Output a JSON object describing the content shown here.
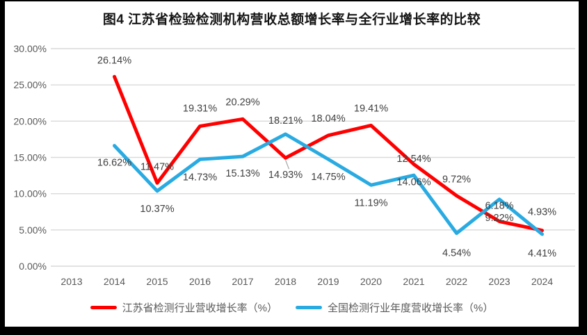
{
  "title": "图4 江苏省检验检测机构营收总额增长率与全行业增长率的比较",
  "chart_data": {
    "type": "line",
    "x": [
      2013,
      2014,
      2015,
      2016,
      2017,
      2018,
      2019,
      2020,
      2021,
      2022,
      2023,
      2024
    ],
    "series": [
      {
        "name": "江苏省检测行业营收增长率（%）",
        "color": "#FF0000",
        "values": [
          null,
          26.14,
          11.47,
          19.31,
          20.29,
          14.93,
          18.04,
          19.41,
          14.06,
          9.72,
          6.18,
          4.93
        ]
      },
      {
        "name": "全国检测行业年度营收增长率（%）",
        "color": "#29ABE2",
        "values": [
          null,
          16.62,
          10.37,
          14.73,
          15.13,
          18.21,
          14.75,
          11.19,
          12.54,
          4.54,
          9.22,
          4.41
        ]
      }
    ],
    "title": "图4 江苏省检验检测机构营收总额增长率与全行业增长率的比较",
    "xlabel": "",
    "ylabel": "",
    "ylim": [
      0,
      30
    ],
    "ytick_step": 5,
    "ytick_labels": [
      "0.00%",
      "5.00%",
      "10.00%",
      "15.00%",
      "20.00%",
      "25.00%",
      "30.00%"
    ],
    "grid": "horizontal",
    "legend_position": "bottom",
    "gridline_color": "#D9D9D9",
    "tick_text_color": "#595959",
    "label_text_color": "#404040",
    "frame_color": "#000000"
  }
}
